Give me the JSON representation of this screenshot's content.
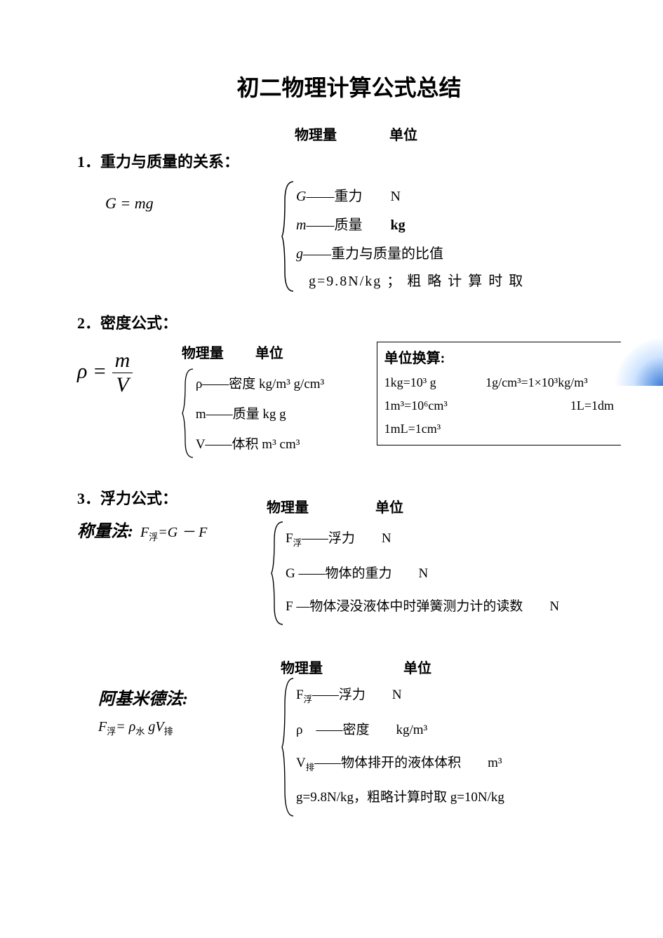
{
  "title": "初二物理计算公式总结",
  "headers": {
    "qty": "物理量",
    "unit": "单位"
  },
  "sec1": {
    "heading": "1．重力与质量的关系：",
    "formula": "G = mg",
    "lines": {
      "l1_sym": "G",
      "l1_desc": "——重力",
      "l1_unit": "N",
      "l2_sym": "m",
      "l2_desc": "——质量",
      "l2_unit": "kg",
      "l3_sym": "g",
      "l3_desc": "——重力与质量的比值",
      "note": "g=9.8N/kg ； 粗 略 计 算 时 取"
    }
  },
  "sec2": {
    "heading": "2．密度公式：",
    "rho": "ρ",
    "eq": " = ",
    "num": "m",
    "den": "V",
    "hdr_qty": "物理量",
    "hdr_unit": "单位",
    "lines": {
      "l1": "ρ——密度  kg/m³   g/cm³",
      "l2": "m——质量  kg        g",
      "l3": "V——体积   m³      cm³"
    },
    "conv": {
      "title": "单位换算:",
      "r1a": "1kg=10³ g",
      "r1b": "1g/cm³=1×10³kg/m³",
      "r2a": "1m³=10⁶cm³",
      "r2b": "1L=1dm",
      "r3a": "1mL=1cm³"
    }
  },
  "sec3": {
    "heading": "3．浮力公式：",
    "method_label": "称量法:",
    "method_formula_html": "F<sub>浮</sub>=G － F",
    "lines": {
      "l1_html": "<span class='sym'>F</span><sub>浮</sub><span class='cn'>——浮力　　N</span>",
      "l2_html": "<span class='sym'>G</span> <span class='cn'>——物体的重力　　N</span>",
      "l3_html": "<span class='sym'>F</span> <span class='cn'>—物体浸没液体中时弹簧测力计的读数　　N</span>"
    }
  },
  "sec4": {
    "method_label": "阿基米德法:",
    "method_formula_html": "F<sub>浮</sub>= ρ<sub>水</sub> gV<sub>排</sub>",
    "lines": {
      "l1_html": "<span class='sym'>F</span><sub>浮</sub><span class='cn'>——浮力　　N</span>",
      "l2_html": "<span class='sym'>ρ</span>　<span class='cn'>——密度　　kg/m³</span>",
      "l3_html": "<span class='sym'>V</span><sub>排</sub><span class='cn'>——物体排开的液体体积　　m³</span>",
      "l4_html": "<span class='cn'>g=9.8N/kg，粗略计算时取 g=10N/kg</span>"
    }
  }
}
